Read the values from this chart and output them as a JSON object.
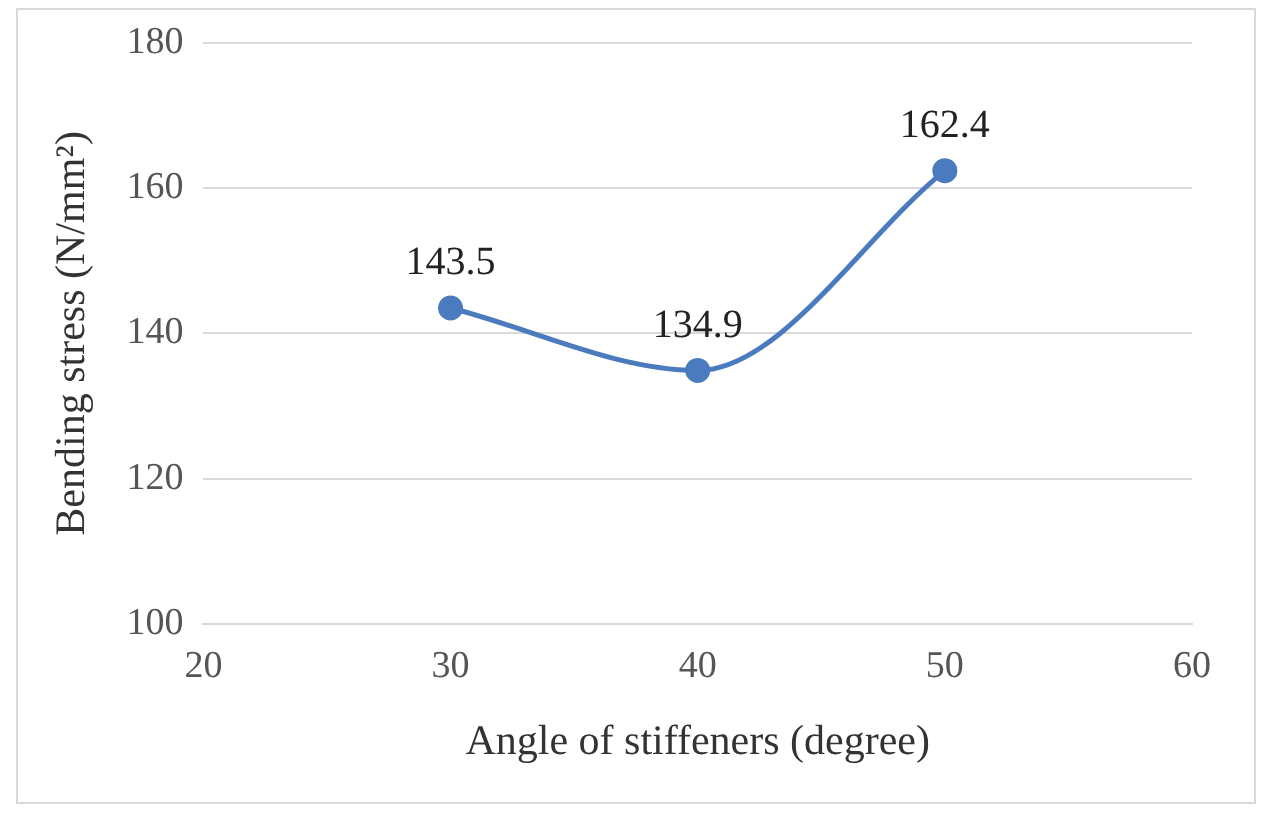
{
  "chart_data": {
    "type": "line",
    "xlabel": "Angle of stiffeners (degree)",
    "ylabel": "Bending stress (N/mm²)",
    "x": [
      30,
      40,
      50
    ],
    "series": [
      {
        "color": "#4a7bbf",
        "values": [
          143.5,
          134.9,
          162.4
        ]
      }
    ],
    "xlim": [
      20,
      60
    ],
    "xticks": [
      20,
      30,
      40,
      50,
      60
    ],
    "ylim": [
      100,
      180
    ],
    "yticks": [
      100,
      120,
      140,
      160,
      180
    ],
    "grid": "y",
    "marker": "circle",
    "data_labels": true,
    "legend": false
  }
}
